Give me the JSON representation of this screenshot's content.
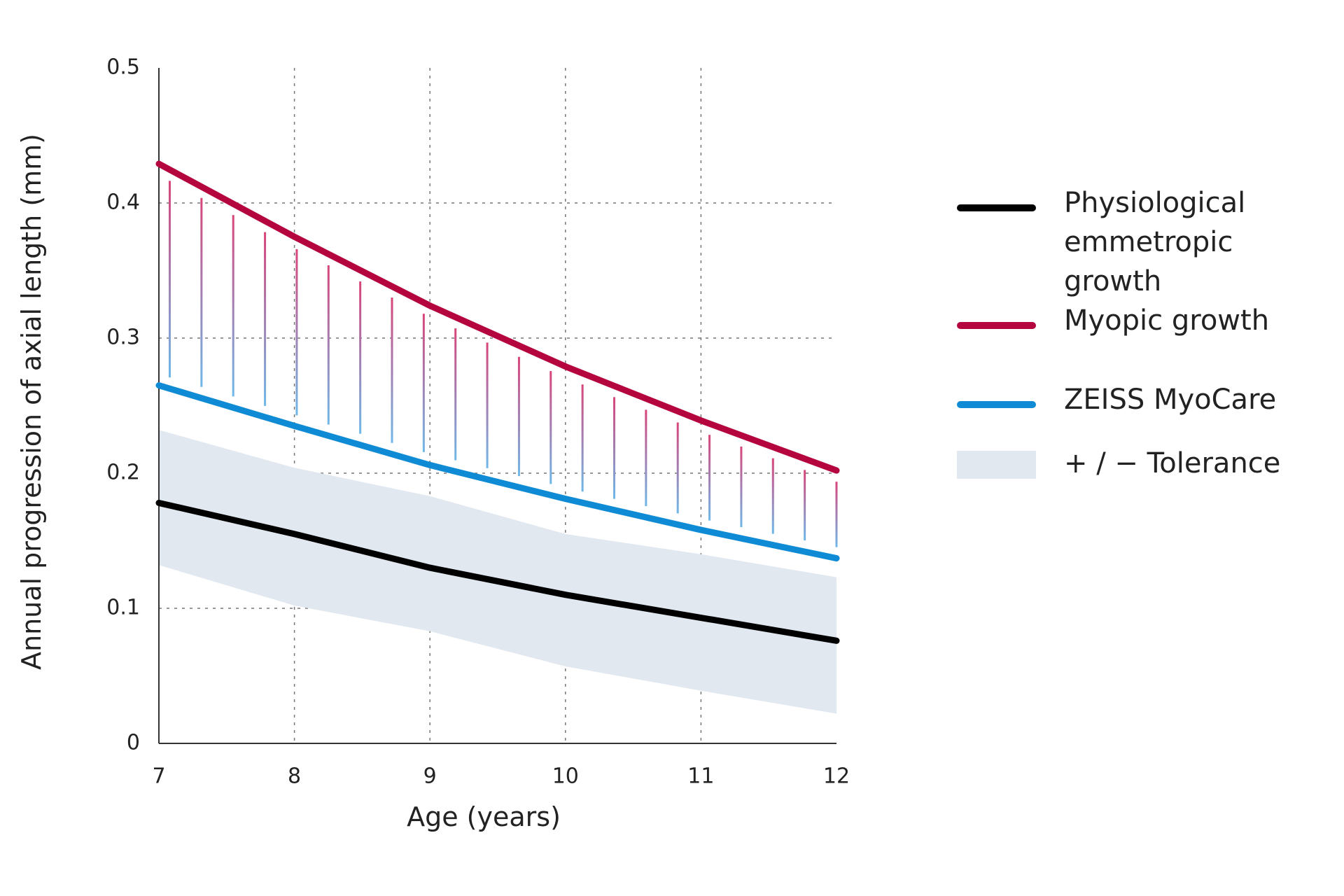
{
  "chart_data": {
    "type": "line",
    "x_label": "Age (years)",
    "y_label": "Annual progression of axial length (mm)",
    "x": [
      7,
      8,
      9,
      10,
      11,
      12
    ],
    "series": [
      {
        "name": "Physiological emmetropic growth",
        "color": "#000000",
        "values": [
          0.178,
          0.155,
          0.13,
          0.11,
          0.093,
          0.076
        ]
      },
      {
        "name": "Myopic growth",
        "color": "#b5053f",
        "values": [
          0.429,
          0.375,
          0.324,
          0.279,
          0.239,
          0.202
        ]
      },
      {
        "name": "ZEISS MyoCare",
        "color": "#0f8bd6",
        "values": [
          0.265,
          0.235,
          0.206,
          0.181,
          0.158,
          0.137
        ]
      },
      {
        "name": "+ / − Tolerance",
        "color": "#e1e8f0",
        "upper": [
          0.232,
          0.204,
          0.183,
          0.155,
          0.14,
          0.123
        ],
        "lower": [
          0.132,
          0.102,
          0.083,
          0.057,
          0.039,
          0.022
        ]
      }
    ],
    "xlim": [
      7,
      12
    ],
    "xticks": [
      7,
      8,
      9,
      10,
      11,
      12
    ],
    "ylim": [
      0,
      0.5
    ],
    "yticks": [
      0,
      0.1,
      0.2,
      0.3,
      0.4,
      0.5
    ],
    "grid": true
  }
}
